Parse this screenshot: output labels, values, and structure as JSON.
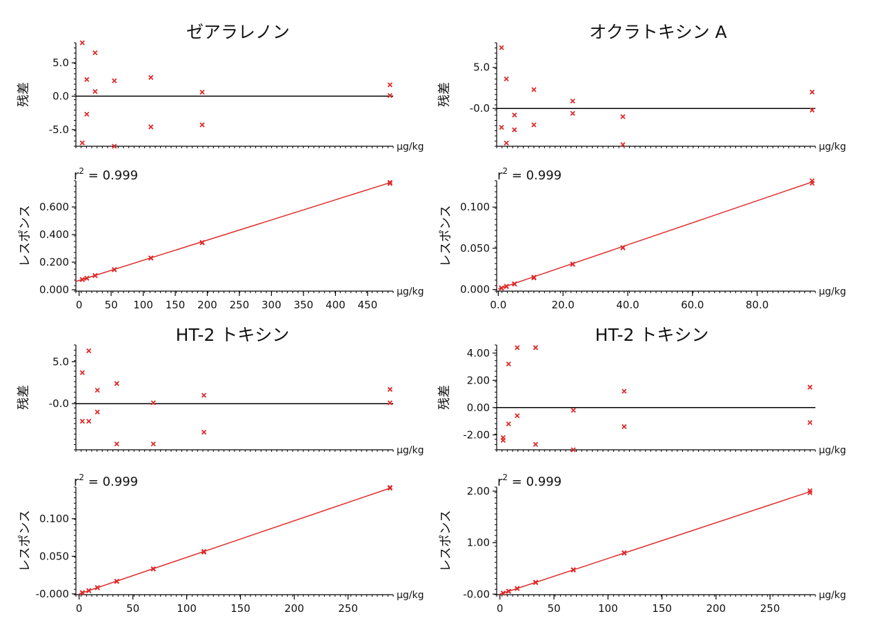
{
  "panels": [
    {
      "title": "ゼアラレノン",
      "unit": "µg/kg",
      "residual_chart": {
        "type": "scatter",
        "ylabel": "残差",
        "xlim": [
          -5,
          490
        ],
        "ylim": [
          -7.5,
          8
        ],
        "yticks": [
          5.0,
          0.0,
          -5.0
        ],
        "ytick_labels": [
          "5.0",
          "0.0",
          "-5.0"
        ],
        "zero_line": 0,
        "points": [
          [
            5,
            8.0
          ],
          [
            5,
            -7.0
          ],
          [
            12,
            2.5
          ],
          [
            12,
            -2.7
          ],
          [
            25,
            6.5
          ],
          [
            25,
            0.7
          ],
          [
            55,
            2.3
          ],
          [
            55,
            -7.5
          ],
          [
            112,
            2.8
          ],
          [
            112,
            -4.6
          ],
          [
            192,
            0.6
          ],
          [
            192,
            -4.3
          ],
          [
            485,
            1.7
          ],
          [
            485,
            0.1
          ]
        ]
      },
      "calibration_chart": {
        "type": "scatter",
        "ylabel": "レスポンス",
        "r2_label": "r",
        "r2_exp": "2",
        "r2_value": " = 0.999",
        "xlim": [
          -5,
          490
        ],
        "ylim": [
          -0.01,
          0.79
        ],
        "xticks": [
          0,
          50,
          100,
          150,
          200,
          250,
          300,
          350,
          400,
          450
        ],
        "xtick_labels": [
          "0",
          "50",
          "100",
          "150",
          "200",
          "250",
          "300",
          "350",
          "400",
          "450"
        ],
        "yticks": [
          0.0,
          0.2,
          0.4,
          0.6
        ],
        "ytick_labels": [
          "0.000",
          "0.200",
          "0.400",
          "0.600"
        ],
        "fit": [
          [
            -5,
            0.06
          ],
          [
            485,
            0.776
          ]
        ],
        "points": [
          [
            5,
            0.075
          ],
          [
            5,
            0.073
          ],
          [
            12,
            0.084
          ],
          [
            12,
            0.083
          ],
          [
            25,
            0.104
          ],
          [
            25,
            0.102
          ],
          [
            55,
            0.147
          ],
          [
            55,
            0.145
          ],
          [
            112,
            0.231
          ],
          [
            112,
            0.229
          ],
          [
            192,
            0.343
          ],
          [
            192,
            0.34
          ],
          [
            485,
            0.778
          ],
          [
            485,
            0.77
          ]
        ]
      }
    },
    {
      "title": "オクラトキシン A",
      "unit": "µg/kg",
      "residual_chart": {
        "type": "scatter",
        "ylabel": "残差",
        "xlim": [
          -0.5,
          98
        ],
        "ylim": [
          -4.6,
          8.0
        ],
        "yticks": [
          5.0,
          0.0
        ],
        "ytick_labels": [
          "5.0",
          "-0.0"
        ],
        "zero_line": 0,
        "points": [
          [
            1,
            7.4
          ],
          [
            1,
            -2.3
          ],
          [
            2.5,
            3.6
          ],
          [
            2.5,
            -4.2
          ],
          [
            5,
            -0.8
          ],
          [
            5,
            -2.6
          ],
          [
            11,
            2.3
          ],
          [
            11,
            -2.0
          ],
          [
            23,
            0.9
          ],
          [
            23,
            -0.6
          ],
          [
            38.5,
            -1.0
          ],
          [
            38.5,
            -4.4
          ],
          [
            97,
            2.0
          ],
          [
            97,
            -0.2
          ]
        ]
      },
      "calibration_chart": {
        "type": "scatter",
        "ylabel": "レスポンス",
        "r2_label": "r",
        "r2_exp": "2",
        "r2_value": " = 0.999",
        "xlim": [
          -0.5,
          98
        ],
        "ylim": [
          -0.002,
          0.132
        ],
        "xticks": [
          0,
          20,
          40,
          60,
          80
        ],
        "xtick_labels": [
          "0.0",
          "20.0",
          "40.0",
          "60.0",
          "80.0"
        ],
        "yticks": [
          0.0,
          0.05,
          0.1
        ],
        "ytick_labels": [
          "0.000",
          "0.050",
          "0.100"
        ],
        "fit": [
          [
            0,
            0.0007
          ],
          [
            97,
            0.1305
          ]
        ],
        "points": [
          [
            1,
            0.002
          ],
          [
            1,
            0.0015
          ],
          [
            2.5,
            0.004
          ],
          [
            2.5,
            0.0035
          ],
          [
            5,
            0.007
          ],
          [
            5,
            0.0065
          ],
          [
            11,
            0.015
          ],
          [
            11,
            0.014
          ],
          [
            23,
            0.031
          ],
          [
            23,
            0.0305
          ],
          [
            38.5,
            0.051
          ],
          [
            38.5,
            0.0505
          ],
          [
            97,
            0.132
          ],
          [
            97,
            0.129
          ]
        ]
      }
    },
    {
      "title": "HT-2 トキシン",
      "unit": "µg/kg",
      "residual_chart": {
        "type": "scatter",
        "ylabel": "残差",
        "xlim": [
          -3,
          292
        ],
        "ylim": [
          -5.5,
          7.0
        ],
        "yticks": [
          5.0,
          0.0
        ],
        "ytick_labels": [
          "5.0",
          "-0.0"
        ],
        "zero_line": 0,
        "points": [
          [
            3,
            3.7
          ],
          [
            3,
            -2.1
          ],
          [
            9,
            6.3
          ],
          [
            9,
            -2.1
          ],
          [
            17,
            1.6
          ],
          [
            17,
            -1.0
          ],
          [
            35,
            2.4
          ],
          [
            35,
            -4.8
          ],
          [
            69,
            0.1
          ],
          [
            69,
            -4.8
          ],
          [
            116,
            1.0
          ],
          [
            116,
            -3.4
          ],
          [
            289,
            1.7
          ],
          [
            289,
            0.1
          ]
        ]
      },
      "calibration_chart": {
        "type": "scatter",
        "ylabel": "レスポンス",
        "r2_label": "r",
        "r2_exp": "2",
        "r2_value": " = 0.999",
        "xlim": [
          -3,
          292
        ],
        "ylim": [
          -0.001,
          0.142
        ],
        "xticks": [
          0,
          50,
          100,
          150,
          200,
          250
        ],
        "xtick_labels": [
          "0",
          "50",
          "100",
          "150",
          "200",
          "250"
        ],
        "yticks": [
          0.0,
          0.05,
          0.1
        ],
        "ytick_labels": [
          "-0.000",
          "0.050",
          "0.100"
        ],
        "fit": [
          [
            0,
            0.0
          ],
          [
            289,
            0.1405
          ]
        ],
        "points": [
          [
            3,
            0.0018
          ],
          [
            3,
            0.0014
          ],
          [
            9,
            0.0045
          ],
          [
            9,
            0.0042
          ],
          [
            17,
            0.0085
          ],
          [
            17,
            0.0082
          ],
          [
            35,
            0.017
          ],
          [
            35,
            0.0165
          ],
          [
            69,
            0.0335
          ],
          [
            69,
            0.033
          ],
          [
            116,
            0.0565
          ],
          [
            116,
            0.0555
          ],
          [
            289,
            0.1415
          ],
          [
            289,
            0.1405
          ]
        ]
      }
    },
    {
      "title": "HT-2 トキシン",
      "unit": "µg/kg",
      "residual_chart": {
        "type": "scatter",
        "ylabel": "残差",
        "xlim": [
          -3,
          292
        ],
        "ylim": [
          -3.1,
          4.6
        ],
        "yticks": [
          4.0,
          2.0,
          0.0,
          -2.0
        ],
        "ytick_labels": [
          "4.00",
          "2.00",
          "0.00",
          "-2.00"
        ],
        "zero_line": 0,
        "points": [
          [
            3,
            -2.2
          ],
          [
            3,
            -2.4
          ],
          [
            8,
            3.2
          ],
          [
            8,
            -1.2
          ],
          [
            16,
            4.4
          ],
          [
            16,
            -0.6
          ],
          [
            33,
            4.4
          ],
          [
            33,
            -2.7
          ],
          [
            68,
            -0.2
          ],
          [
            68,
            -3.1
          ],
          [
            115,
            1.2
          ],
          [
            115,
            -1.4
          ],
          [
            287,
            1.5
          ],
          [
            287,
            -1.1
          ]
        ]
      },
      "calibration_chart": {
        "type": "scatter",
        "ylabel": "レスポンス",
        "r2_label": "r",
        "r2_exp": "2",
        "r2_value": " = 0.999",
        "xlim": [
          -3,
          292
        ],
        "ylim": [
          -0.01,
          2.08
        ],
        "xticks": [
          0,
          50,
          100,
          150,
          200,
          250
        ],
        "xtick_labels": [
          "0",
          "50",
          "100",
          "150",
          "200",
          "250"
        ],
        "yticks": [
          0.0,
          1.0,
          2.0
        ],
        "ytick_labels": [
          "-0.00",
          "1.00",
          "2.00"
        ],
        "fit": [
          [
            0,
            0.0
          ],
          [
            287,
            1.99
          ]
        ],
        "points": [
          [
            3,
            0.022
          ],
          [
            3,
            0.018
          ],
          [
            8,
            0.058
          ],
          [
            8,
            0.053
          ],
          [
            16,
            0.112
          ],
          [
            16,
            0.108
          ],
          [
            33,
            0.232
          ],
          [
            33,
            0.225
          ],
          [
            68,
            0.475
          ],
          [
            68,
            0.468
          ],
          [
            115,
            0.805
          ],
          [
            115,
            0.795
          ],
          [
            287,
            2.01
          ],
          [
            287,
            1.97
          ]
        ]
      }
    }
  ],
  "colors": {
    "marker": "#e02a2a",
    "fit_line": "#e02a2a",
    "zero_line": "#000000",
    "axis": "#000000",
    "text": "#111111"
  }
}
